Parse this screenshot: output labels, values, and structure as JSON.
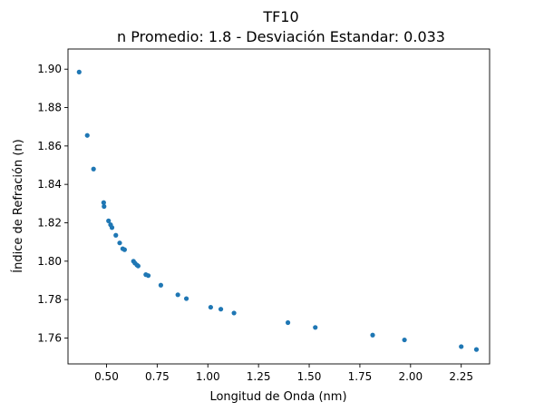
{
  "chart_data": {
    "type": "scatter",
    "title": "TF10",
    "subtitle": "n Promedio: 1.8 - Desviación Estandar: 0.033",
    "xlabel": "Longitud de Onda (nm)",
    "ylabel": "Índice de Refración (n)",
    "xlim": [
      0.31,
      2.39
    ],
    "ylim": [
      1.7465,
      1.9105
    ],
    "xticks": [
      0.5,
      0.75,
      1.0,
      1.25,
      1.5,
      1.75,
      2.0,
      2.25
    ],
    "xtick_labels": [
      "0.50",
      "0.75",
      "1.00",
      "1.25",
      "1.50",
      "1.75",
      "2.00",
      "2.25"
    ],
    "yticks": [
      1.76,
      1.78,
      1.8,
      1.82,
      1.84,
      1.86,
      1.88,
      1.9
    ],
    "ytick_labels": [
      "1.76",
      "1.78",
      "1.80",
      "1.82",
      "1.84",
      "1.86",
      "1.88",
      "1.90"
    ],
    "grid": false,
    "marker_color": "#1f77b4",
    "series": [
      {
        "x": [
          0.365,
          0.405,
          0.436,
          0.486,
          0.488,
          0.51,
          0.52,
          0.527,
          0.546,
          0.565,
          0.58,
          0.589,
          0.633,
          0.64,
          0.65,
          0.656,
          0.694,
          0.706,
          0.768,
          0.852,
          0.894,
          1.014,
          1.064,
          1.129,
          1.395,
          1.53,
          1.813,
          1.97,
          2.25,
          2.325
        ],
        "y": [
          1.8985,
          1.8655,
          1.848,
          1.8305,
          1.8285,
          1.821,
          1.819,
          1.8175,
          1.8135,
          1.8095,
          1.8065,
          1.806,
          1.8,
          1.799,
          1.798,
          1.7975,
          1.793,
          1.7925,
          1.7875,
          1.7825,
          1.7805,
          1.776,
          1.775,
          1.773,
          1.768,
          1.7655,
          1.7615,
          1.759,
          1.7555,
          1.754
        ]
      }
    ]
  }
}
